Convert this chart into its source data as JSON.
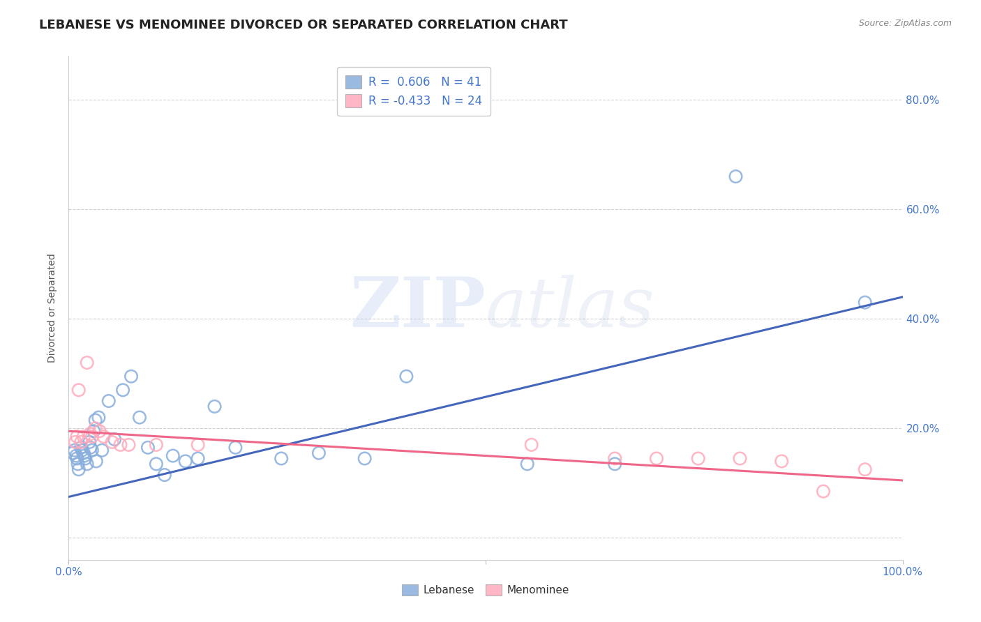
{
  "title": "LEBANESE VS MENOMINEE DIVORCED OR SEPARATED CORRELATION CHART",
  "source": "Source: ZipAtlas.com",
  "ylabel": "Divorced or Separated",
  "xlim": [
    0.0,
    1.0
  ],
  "ylim": [
    -0.04,
    0.88
  ],
  "watermark_zip": "ZIP",
  "watermark_atlas": "atlas",
  "lebanese_color": "#88AEDD",
  "lebanese_edge_color": "#88AEDD",
  "menominee_color": "#FFAABB",
  "menominee_edge_color": "#FFAABB",
  "lebanese_line_color": "#4466BB",
  "menominee_line_color": "#EE6688",
  "R_lebanese": 0.606,
  "N_lebanese": 41,
  "R_menominee": -0.433,
  "N_menominee": 24,
  "lebanese_x": [
    0.005,
    0.007,
    0.009,
    0.01,
    0.011,
    0.012,
    0.015,
    0.016,
    0.018,
    0.019,
    0.02,
    0.022,
    0.025,
    0.026,
    0.028,
    0.03,
    0.032,
    0.033,
    0.036,
    0.04,
    0.048,
    0.055,
    0.065,
    0.075,
    0.085,
    0.095,
    0.105,
    0.115,
    0.125,
    0.14,
    0.155,
    0.175,
    0.2,
    0.255,
    0.3,
    0.355,
    0.405,
    0.55,
    0.655,
    0.8,
    0.955
  ],
  "lebanese_y": [
    0.155,
    0.16,
    0.15,
    0.145,
    0.135,
    0.125,
    0.165,
    0.16,
    0.155,
    0.15,
    0.145,
    0.135,
    0.175,
    0.165,
    0.16,
    0.195,
    0.215,
    0.14,
    0.22,
    0.16,
    0.25,
    0.18,
    0.27,
    0.295,
    0.22,
    0.165,
    0.135,
    0.115,
    0.15,
    0.14,
    0.145,
    0.24,
    0.165,
    0.145,
    0.155,
    0.145,
    0.295,
    0.135,
    0.135,
    0.66,
    0.43
  ],
  "menominee_x": [
    0.008,
    0.01,
    0.012,
    0.015,
    0.018,
    0.022,
    0.026,
    0.028,
    0.032,
    0.037,
    0.042,
    0.052,
    0.062,
    0.072,
    0.105,
    0.155,
    0.555,
    0.655,
    0.705,
    0.755,
    0.805,
    0.855,
    0.905,
    0.955
  ],
  "menominee_y": [
    0.175,
    0.185,
    0.27,
    0.175,
    0.185,
    0.32,
    0.19,
    0.185,
    0.2,
    0.195,
    0.185,
    0.175,
    0.17,
    0.17,
    0.17,
    0.17,
    0.17,
    0.145,
    0.145,
    0.145,
    0.145,
    0.14,
    0.085,
    0.125
  ],
  "lebanese_trend_x": [
    0.0,
    1.0
  ],
  "lebanese_trend_y": [
    0.075,
    0.44
  ],
  "menominee_trend_x": [
    0.0,
    1.0
  ],
  "menominee_trend_y": [
    0.195,
    0.105
  ],
  "ytick_vals": [
    0.0,
    0.2,
    0.4,
    0.6,
    0.8
  ],
  "ytick_labels": [
    "",
    "20.0%",
    "40.0%",
    "60.0%",
    "80.0%"
  ],
  "xtick_vals": [
    0.0,
    0.5,
    1.0
  ],
  "xtick_labels": [
    "0.0%",
    "",
    "100.0%"
  ],
  "grid_color": "#CCCCCC",
  "background_color": "#FFFFFF",
  "title_fontsize": 13,
  "axis_label_fontsize": 10,
  "tick_label_color": "#4477CC",
  "source_color": "#888888"
}
